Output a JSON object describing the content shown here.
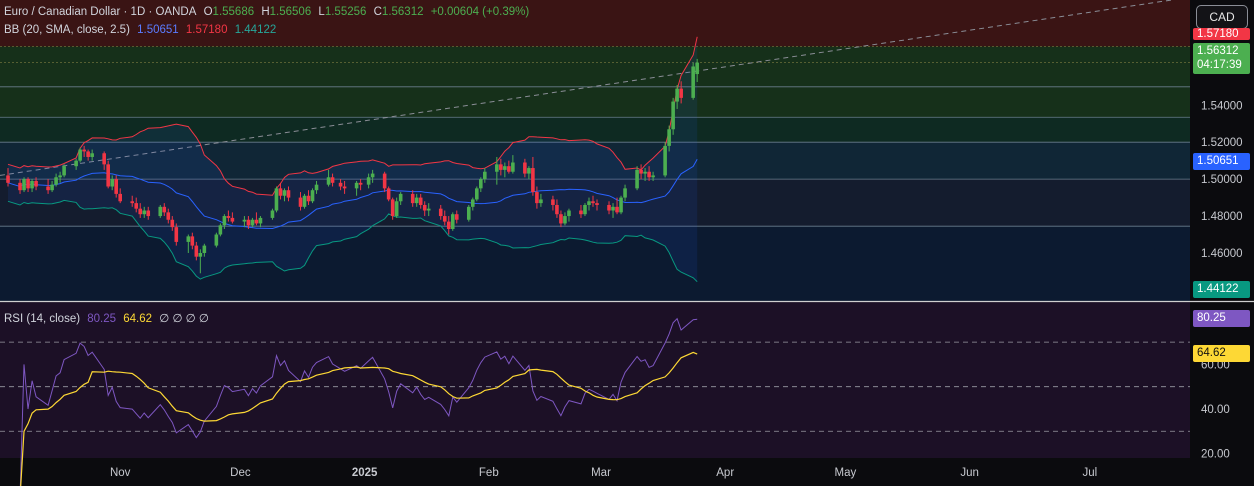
{
  "header": {
    "symbol_title": "Euro / Canadian Dollar · 1D · OANDA",
    "ohlc": {
      "o_label": "O",
      "o": "1.55686",
      "h_label": "H",
      "h": "1.56506",
      "l_label": "L",
      "l": "1.55256",
      "c_label": "C",
      "c": "1.56312",
      "change": "+0.00604 (+0.39%)"
    },
    "bb_label": "BB (20, SMA, close, 2.5)",
    "bb_values": {
      "basis": "1.50651",
      "upper": "1.57180",
      "lower": "1.44122"
    },
    "rsi_label": "RSI (14, close)",
    "rsi_values": {
      "rsi": "80.25",
      "ma": "64.62",
      "extra": "∅ ∅ ∅ ∅"
    }
  },
  "currency_button": "CAD",
  "price_tags": {
    "upper_band": "1.57180",
    "last_price": "1.56312",
    "countdown": "04:17:39",
    "basis": "1.50651",
    "lower_band": "1.44122",
    "rsi": "80.25",
    "rsi_ma": "64.62"
  },
  "colors": {
    "up": "#4caf50",
    "down": "#f23645",
    "upper_band": "#f23645",
    "basis": "#2962ff",
    "lower_band": "#089981",
    "rsi_line": "#7e57c2",
    "rsi_ma": "#fdd835",
    "accent_blue": "#2962ff"
  },
  "chart_data": [
    {
      "type": "candlestick",
      "title": "Euro / Canadian Dollar · 1D · OANDA",
      "y_ticks": [
        "1.54000",
        "1.52000",
        "1.50000",
        "1.48000",
        "1.46000"
      ],
      "y_range": [
        1.434,
        1.597
      ],
      "x_ticks": [
        "Nov",
        "Dec",
        "2025",
        "Feb",
        "Mar",
        "Apr",
        "May",
        "Jun",
        "Jul"
      ],
      "x_range": [
        "2024-10-02",
        "2025-07-26"
      ],
      "candles": [
        [
          "2024-10-04",
          1.502,
          1.506,
          1.496,
          1.498
        ],
        [
          "2024-10-07",
          1.498,
          1.5,
          1.492,
          1.494
        ],
        [
          "2024-10-08",
          1.494,
          1.501,
          1.493,
          1.5
        ],
        [
          "2024-10-09",
          1.5,
          1.501,
          1.493,
          1.495
        ],
        [
          "2024-10-10",
          1.495,
          1.5,
          1.493,
          1.499
        ],
        [
          "2024-10-11",
          1.499,
          1.501,
          1.494,
          1.496
        ],
        [
          "2024-10-14",
          1.496,
          1.5,
          1.492,
          1.494
        ],
        [
          "2024-10-15",
          1.494,
          1.499,
          1.493,
          1.497
        ],
        [
          "2024-10-16",
          1.497,
          1.503,
          1.496,
          1.501
        ],
        [
          "2024-10-17",
          1.501,
          1.504,
          1.498,
          1.502
        ],
        [
          "2024-10-18",
          1.502,
          1.508,
          1.501,
          1.507
        ],
        [
          "2024-10-21",
          1.507,
          1.511,
          1.505,
          1.51
        ],
        [
          "2024-10-22",
          1.51,
          1.517,
          1.509,
          1.516
        ],
        [
          "2024-10-23",
          1.516,
          1.518,
          1.512,
          1.515
        ],
        [
          "2024-10-24",
          1.515,
          1.516,
          1.51,
          1.512
        ],
        [
          "2024-10-25",
          1.512,
          1.516,
          1.51,
          1.514
        ],
        [
          "2024-10-28",
          1.514,
          1.515,
          1.505,
          1.508
        ],
        [
          "2024-10-29",
          1.508,
          1.51,
          1.495,
          1.496
        ],
        [
          "2024-10-30",
          1.496,
          1.502,
          1.494,
          1.5
        ],
        [
          "2024-10-31",
          1.5,
          1.502,
          1.49,
          1.492
        ],
        [
          "2024-11-01",
          1.492,
          1.495,
          1.487,
          1.488
        ],
        [
          "2024-11-04",
          1.488,
          1.491,
          1.485,
          1.487
        ],
        [
          "2024-11-05",
          1.487,
          1.49,
          1.482,
          1.484
        ],
        [
          "2024-11-06",
          1.484,
          1.487,
          1.479,
          1.481
        ],
        [
          "2024-11-07",
          1.481,
          1.485,
          1.479,
          1.483
        ],
        [
          "2024-11-08",
          1.483,
          1.485,
          1.478,
          1.48
        ],
        [
          "2024-11-11",
          1.48,
          1.486,
          1.479,
          1.485
        ],
        [
          "2024-11-12",
          1.485,
          1.487,
          1.48,
          1.482
        ],
        [
          "2024-11-13",
          1.482,
          1.484,
          1.476,
          1.478
        ],
        [
          "2024-11-14",
          1.478,
          1.48,
          1.472,
          1.474
        ],
        [
          "2024-11-15",
          1.474,
          1.476,
          1.464,
          1.466
        ],
        [
          "2024-11-18",
          1.466,
          1.47,
          1.46,
          1.469
        ],
        [
          "2024-11-19",
          1.469,
          1.471,
          1.462,
          1.464
        ],
        [
          "2024-11-20",
          1.464,
          1.466,
          1.456,
          1.458
        ],
        [
          "2024-11-21",
          1.458,
          1.462,
          1.449,
          1.46
        ],
        [
          "2024-11-22",
          1.46,
          1.465,
          1.458,
          1.464
        ],
        [
          "2024-11-25",
          1.464,
          1.471,
          1.463,
          1.47
        ],
        [
          "2024-11-26",
          1.47,
          1.476,
          1.469,
          1.475
        ],
        [
          "2024-11-27",
          1.475,
          1.481,
          1.473,
          1.48
        ],
        [
          "2024-11-28",
          1.48,
          1.483,
          1.477,
          1.479
        ],
        [
          "2024-11-29",
          1.479,
          1.482,
          1.476,
          1.477
        ],
        [
          "2024-12-02",
          1.477,
          1.48,
          1.474,
          1.478
        ],
        [
          "2024-12-03",
          1.478,
          1.48,
          1.473,
          1.475
        ],
        [
          "2024-12-04",
          1.475,
          1.479,
          1.474,
          1.478
        ],
        [
          "2024-12-05",
          1.478,
          1.482,
          1.475,
          1.476
        ],
        [
          "2024-12-06",
          1.476,
          1.48,
          1.474,
          1.479
        ],
        [
          "2024-12-09",
          1.479,
          1.484,
          1.478,
          1.483
        ],
        [
          "2024-12-10",
          1.483,
          1.496,
          1.482,
          1.495
        ],
        [
          "2024-12-11",
          1.495,
          1.498,
          1.489,
          1.491
        ],
        [
          "2024-12-12",
          1.491,
          1.495,
          1.488,
          1.494
        ],
        [
          "2024-12-13",
          1.494,
          1.496,
          1.488,
          1.49
        ],
        [
          "2024-12-16",
          1.49,
          1.493,
          1.483,
          1.485
        ],
        [
          "2024-12-17",
          1.485,
          1.492,
          1.484,
          1.491
        ],
        [
          "2024-12-18",
          1.491,
          1.494,
          1.486,
          1.488
        ],
        [
          "2024-12-19",
          1.488,
          1.495,
          1.487,
          1.494
        ],
        [
          "2024-12-20",
          1.494,
          1.499,
          1.492,
          1.497
        ],
        [
          "2024-12-23",
          1.497,
          1.505,
          1.496,
          1.501
        ],
        [
          "2024-12-24",
          1.501,
          1.503,
          1.496,
          1.498
        ],
        [
          "2024-12-26",
          1.498,
          1.5,
          1.494,
          1.496
        ],
        [
          "2024-12-27",
          1.496,
          1.499,
          1.492,
          1.495
        ],
        [
          "2024-12-30",
          1.495,
          1.499,
          1.491,
          1.498
        ],
        [
          "2024-12-31",
          1.498,
          1.5,
          1.494,
          1.497
        ],
        [
          "2025-01-02",
          1.497,
          1.503,
          1.495,
          1.501
        ],
        [
          "2025-01-03",
          1.501,
          1.505,
          1.498,
          1.503
        ],
        [
          "2025-01-06",
          1.503,
          1.504,
          1.493,
          1.495
        ],
        [
          "2025-01-07",
          1.495,
          1.496,
          1.488,
          1.489
        ],
        [
          "2025-01-08",
          1.489,
          1.49,
          1.478,
          1.48
        ],
        [
          "2025-01-09",
          1.48,
          1.49,
          1.479,
          1.488
        ],
        [
          "2025-01-10",
          1.488,
          1.493,
          1.486,
          1.492
        ],
        [
          "2025-01-13",
          1.492,
          1.494,
          1.485,
          1.487
        ],
        [
          "2025-01-14",
          1.487,
          1.492,
          1.485,
          1.49
        ],
        [
          "2025-01-15",
          1.49,
          1.492,
          1.484,
          1.486
        ],
        [
          "2025-01-16",
          1.486,
          1.488,
          1.48,
          1.483
        ],
        [
          "2025-01-17",
          1.483,
          1.487,
          1.48,
          1.484
        ],
        [
          "2025-01-20",
          1.484,
          1.486,
          1.478,
          1.48
        ],
        [
          "2025-01-21",
          1.48,
          1.483,
          1.475,
          1.477
        ],
        [
          "2025-01-22",
          1.477,
          1.48,
          1.47,
          1.473
        ],
        [
          "2025-01-23",
          1.473,
          1.482,
          1.472,
          1.481
        ],
        [
          "2025-01-24",
          1.481,
          1.483,
          1.476,
          1.478
        ],
        [
          "2025-01-27",
          1.478,
          1.486,
          1.477,
          1.485
        ],
        [
          "2025-01-28",
          1.485,
          1.49,
          1.483,
          1.489
        ],
        [
          "2025-01-29",
          1.489,
          1.496,
          1.488,
          1.495
        ],
        [
          "2025-01-30",
          1.495,
          1.501,
          1.493,
          1.5
        ],
        [
          "2025-01-31",
          1.5,
          1.506,
          1.498,
          1.504
        ],
        [
          "2025-02-03",
          1.504,
          1.512,
          1.497,
          1.508
        ],
        [
          "2025-02-04",
          1.508,
          1.511,
          1.502,
          1.505
        ],
        [
          "2025-02-05",
          1.505,
          1.509,
          1.501,
          1.507
        ],
        [
          "2025-02-06",
          1.507,
          1.51,
          1.503,
          1.504
        ],
        [
          "2025-02-07",
          1.504,
          1.513,
          1.503,
          1.509
        ],
        [
          "2025-02-10",
          1.509,
          1.511,
          1.501,
          1.503
        ],
        [
          "2025-02-11",
          1.503,
          1.507,
          1.5,
          1.506
        ],
        [
          "2025-02-12",
          1.506,
          1.512,
          1.491,
          1.493
        ],
        [
          "2025-02-13",
          1.493,
          1.496,
          1.484,
          1.487
        ],
        [
          "2025-02-14",
          1.487,
          1.492,
          1.485,
          1.489
        ],
        [
          "2025-02-17",
          1.489,
          1.491,
          1.483,
          1.486
        ],
        [
          "2025-02-18",
          1.486,
          1.489,
          1.479,
          1.481
        ],
        [
          "2025-02-19",
          1.481,
          1.483,
          1.474,
          1.476
        ],
        [
          "2025-02-20",
          1.476,
          1.482,
          1.475,
          1.48
        ],
        [
          "2025-02-21",
          1.48,
          1.484,
          1.477,
          1.483
        ],
        [
          "2025-02-24",
          1.483,
          1.486,
          1.479,
          1.481
        ],
        [
          "2025-02-25",
          1.481,
          1.487,
          1.48,
          1.486
        ],
        [
          "2025-02-26",
          1.486,
          1.49,
          1.483,
          1.488
        ],
        [
          "2025-02-27",
          1.488,
          1.491,
          1.485,
          1.487
        ],
        [
          "2025-02-28",
          1.487,
          1.489,
          1.483,
          1.486
        ],
        [
          "2025-03-03",
          1.486,
          1.488,
          1.481,
          1.483
        ],
        [
          "2025-03-04",
          1.483,
          1.487,
          1.479,
          1.485
        ],
        [
          "2025-03-05",
          1.485,
          1.49,
          1.481,
          1.482
        ],
        [
          "2025-03-06",
          1.482,
          1.491,
          1.481,
          1.49
        ],
        [
          "2025-03-07",
          1.49,
          1.497,
          1.488,
          1.495
        ],
        [
          "2025-03-10",
          1.495,
          1.507,
          1.494,
          1.505
        ],
        [
          "2025-03-11",
          1.505,
          1.508,
          1.5,
          1.503
        ],
        [
          "2025-03-12",
          1.503,
          1.506,
          1.499,
          1.504
        ],
        [
          "2025-03-13",
          1.504,
          1.507,
          1.499,
          1.501
        ],
        [
          "2025-03-14",
          1.501,
          1.504,
          1.499,
          1.502
        ],
        [
          "2025-03-17",
          1.502,
          1.52,
          1.501,
          1.518
        ],
        [
          "2025-03-18",
          1.518,
          1.529,
          1.515,
          1.527
        ],
        [
          "2025-03-19",
          1.527,
          1.544,
          1.524,
          1.542
        ],
        [
          "2025-03-20",
          1.542,
          1.551,
          1.538,
          1.549
        ],
        [
          "2025-03-21",
          1.549,
          1.553,
          1.541,
          1.544
        ],
        [
          "2025-03-24",
          1.544,
          1.563,
          1.543,
          1.561
        ],
        [
          "2025-03-25",
          1.5569,
          1.5651,
          1.5526,
          1.5631
        ]
      ]
    },
    {
      "type": "line",
      "title": "RSI (14, close)",
      "y_ticks": [
        "60.00",
        "40.00",
        "20.00"
      ],
      "y_range": [
        18,
        88
      ],
      "bands": [
        70,
        50,
        30
      ],
      "last": {
        "rsi": 80.25,
        "rsi_ma": 64.62
      }
    }
  ]
}
